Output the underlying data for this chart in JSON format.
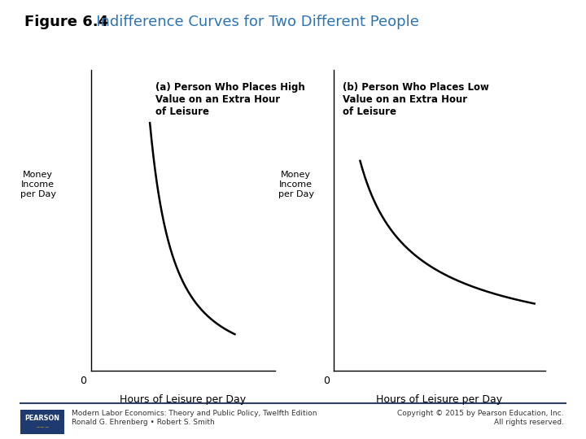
{
  "title_bold": "Figure 6.4",
  "title_colored": "   Indifference Curves for Two Different People",
  "title_color": "#2e74b5",
  "title_bold_color": "#000000",
  "title_fontsize": 13,
  "bg_color": "#ffffff",
  "panel_a_title": "(a) Person Who Places High\nValue on an Extra Hour\nof Leisure",
  "panel_b_title": "(b) Person Who Places Low\nValue on an Extra Hour\nof Leisure",
  "ylabel_text": "Money\nIncome\nper Day",
  "xlabel_text": "Hours of Leisure per Day",
  "zero_label": "0",
  "footer_left_line1": "Modern Labor Economics: Theory and Public Policy, Twelfth Edition",
  "footer_left_line2": "Ronald G. Ehrenberg • Robert S. Smith",
  "footer_right_line1": "Copyright © 2015 by Pearson Education, Inc.",
  "footer_right_line2": "All rights reserved.",
  "footer_color": "#333333",
  "footer_fontsize": 6.5,
  "curve_color": "#000000",
  "curve_linewidth": 1.8,
  "axis_linewidth": 1.0,
  "panel_title_fontsize": 8.5,
  "ylabel_fontsize": 8.0,
  "xlabel_fontsize": 9.0,
  "zero_fontsize": 9.0
}
